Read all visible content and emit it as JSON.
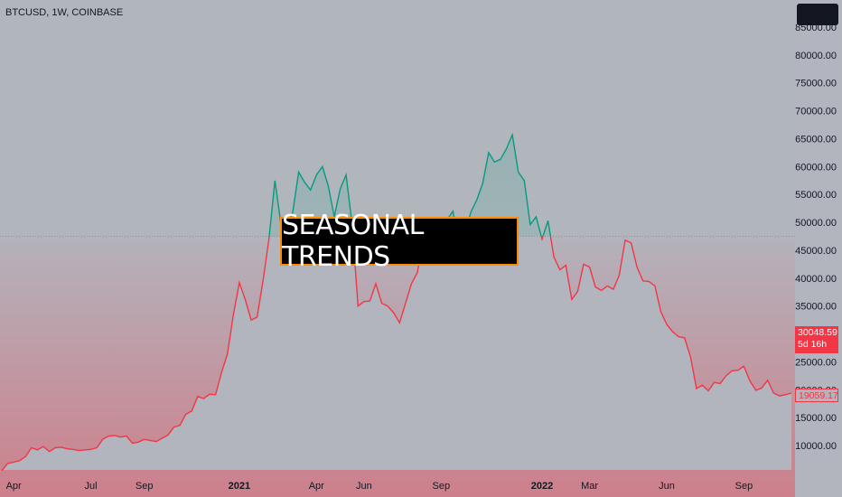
{
  "header": {
    "symbol": "BTCUSD, 1W, COINBASE"
  },
  "banner": {
    "text": "SEASONAL TRENDS"
  },
  "price_tags": {
    "current_price": "30048.59",
    "countdown": "5d 16h",
    "baseline_price": "19059.17"
  },
  "colors": {
    "background": "#b2b5be",
    "up": "#089981",
    "down": "#f23645",
    "banner_border": "#ff8c00"
  },
  "chart_data": {
    "type": "area",
    "title": "",
    "xlabel": "",
    "ylabel": "",
    "baseline": 47500,
    "ylim": [
      3500,
      87000
    ],
    "y_ticks": [
      10000,
      15000,
      20000,
      25000,
      30000,
      35000,
      40000,
      45000,
      50000,
      55000,
      60000,
      65000,
      70000,
      75000,
      80000,
      85000
    ],
    "y_tick_labels": [
      "10000.00",
      "15000.00",
      "20000.00",
      "25000.00",
      "30000.00",
      "35000.00",
      "40000.00",
      "45000.00",
      "50000.00",
      "55000.00",
      "60000.00",
      "65000.00",
      "70000.00",
      "75000.00",
      "80000.00",
      "85000.00"
    ],
    "x_ticks": [
      {
        "label": "Apr",
        "week": 2,
        "bold": false
      },
      {
        "label": "Jul",
        "week": 15,
        "bold": false
      },
      {
        "label": "Sep",
        "week": 24,
        "bold": false
      },
      {
        "label": "2021",
        "week": 40,
        "bold": true
      },
      {
        "label": "Apr",
        "week": 53,
        "bold": false
      },
      {
        "label": "Jun",
        "week": 61,
        "bold": false
      },
      {
        "label": "Sep",
        "week": 74,
        "bold": false
      },
      {
        "label": "2022",
        "week": 91,
        "bold": true
      },
      {
        "label": "Mar",
        "week": 99,
        "bold": false
      },
      {
        "label": "Jun",
        "week": 112,
        "bold": false
      },
      {
        "label": "Sep",
        "week": 125,
        "bold": false
      }
    ],
    "grid": false,
    "legend": "none",
    "series": [
      {
        "values": [
          5500,
          6800,
          7000,
          7300,
          8000,
          9600,
          9200,
          9800,
          8900,
          9600,
          9700,
          9400,
          9300,
          9100,
          9200,
          9300,
          9600,
          11100,
          11700,
          11800,
          11500,
          11700,
          10400,
          10600,
          11100,
          10900,
          10700,
          11300,
          11900,
          13300,
          13600,
          15600,
          16200,
          18800,
          18400,
          19200,
          19100,
          23000,
          26400,
          33400,
          39200,
          36200,
          32500,
          33000,
          39500,
          47000,
          57500,
          49800,
          49300,
          51800,
          59000,
          57200,
          55800,
          58500,
          60000,
          56500,
          51000,
          56000,
          58500,
          49700,
          35000,
          35800,
          35900,
          39000,
          35500,
          35000,
          33800,
          32000,
          35500,
          39000,
          41000,
          47000,
          48800,
          49600,
          49000,
          50500,
          52000,
          45000,
          48000,
          51800,
          54000,
          57000,
          62500,
          60800,
          61300,
          63200,
          65700,
          59000,
          57500,
          49600,
          51000,
          47000,
          50300,
          43800,
          41500,
          42300,
          36200,
          37600,
          42500,
          42000,
          38400,
          37800,
          38600,
          38000,
          40500,
          46800,
          46300,
          42000,
          39500,
          39400,
          38600,
          34000,
          31700,
          30400,
          29500,
          29300,
          25900,
          20200,
          20800,
          19800,
          21300,
          21100,
          22500,
          23400,
          23500,
          24200,
          21600,
          19900,
          20300,
          21700,
          19400,
          18900,
          19100,
          19400
        ]
      }
    ]
  }
}
